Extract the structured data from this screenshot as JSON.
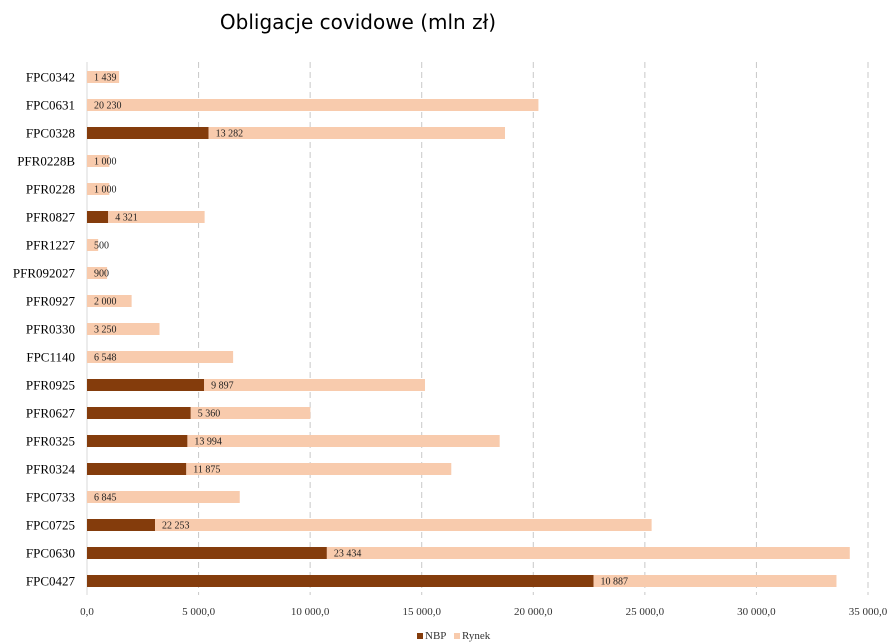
{
  "chart_data": {
    "type": "bar",
    "orientation": "horizontal",
    "stacked": true,
    "title": "Obligacje covidowe (mln zł)",
    "categories": [
      "FPC0342",
      "FPC0631",
      "FPC0328",
      "PFR0228B",
      "PFR0228",
      "PFR0827",
      "PFR1227",
      "PFR092027",
      "PFR0927",
      "PFR0330",
      "FPC1140",
      "PFR0925",
      "PFR0627",
      "PFR0325",
      "PFR0324",
      "FPC0733",
      "FPC0725",
      "FPC0630",
      "FPC0427"
    ],
    "series": [
      {
        "name": "NBP",
        "color": "#843c0c",
        "values": [
          0,
          0,
          5450,
          0,
          0,
          950,
          0,
          0,
          0,
          0,
          0,
          5250,
          4650,
          4500,
          4450,
          0,
          3050,
          10750,
          22700
        ]
      },
      {
        "name": "Rynek",
        "color": "#f8cbad",
        "values": [
          1439,
          20230,
          13282,
          1000,
          1000,
          4321,
          500,
          900,
          2000,
          3250,
          6548,
          9897,
          5360,
          13994,
          11875,
          6845,
          22253,
          23434,
          10887
        ]
      }
    ],
    "value_labels": [
      "1 439",
      "20 230",
      "13 282",
      "1 000",
      "1 000",
      "4 321",
      "500",
      "900",
      "2 000",
      "3 250",
      "6 548",
      "9 897",
      "5 360",
      "13 994",
      "11 875",
      "6 845",
      "22 253",
      "23 434",
      "10 887"
    ],
    "x_ticks": [
      "0,0",
      "5 000,0",
      "10 000,0",
      "15 000,0",
      "20 000,0",
      "25 000,0",
      "30 000,0",
      "35 000,0"
    ],
    "xlim": [
      0,
      35000
    ],
    "xlabel": "",
    "ylabel": "",
    "grid": "vertical dashed",
    "legend_position": "bottom"
  }
}
